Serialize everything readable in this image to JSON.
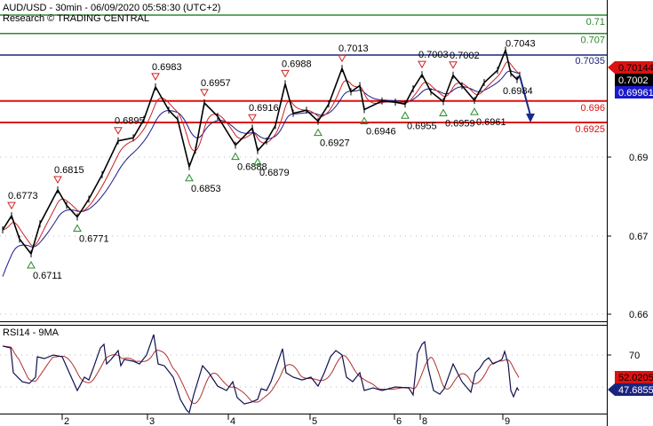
{
  "header": {
    "title": "AUD/USD - 30min - 06/09/2020 05:58:30 (UTC+2)",
    "credit": "Research © TRADING CENTRAL"
  },
  "colors": {
    "price": "#000000",
    "fast_ma": "#cc2222",
    "slow_ma": "#1a1a8c",
    "resistance_green": "#2a8a2a",
    "pivot_navy": "#1a237e",
    "support_red": "#dd1111",
    "arrow": "#1a2a8c",
    "rsi": "#101050",
    "rsi_ma": "#b03030"
  },
  "chart_data": [
    {
      "type": "line",
      "panel": "price",
      "x_unit": "30-min bar index",
      "y_ticks": [
        "0.69",
        "0.67",
        "0.66"
      ],
      "x_ticks": [
        {
          "label": "2",
          "bar": 35
        },
        {
          "label": "3",
          "bar": 83
        },
        {
          "label": "4",
          "bar": 128.5
        },
        {
          "label": "5",
          "bar": 174.5
        },
        {
          "label": "6",
          "bar": 222
        },
        {
          "label": "8",
          "bar": 236.5
        },
        {
          "label": "9",
          "bar": 283
        }
      ],
      "close": [
        [
          1.5,
          0.675
        ],
        [
          6.5,
          0.6773
        ],
        [
          11,
          0.6735
        ],
        [
          17.5,
          0.6711
        ],
        [
          22.5,
          0.676
        ],
        [
          32.5,
          0.6815
        ],
        [
          37.5,
          0.679
        ],
        [
          43.5,
          0.6771
        ],
        [
          50,
          0.68
        ],
        [
          57.5,
          0.684
        ],
        [
          66.5,
          0.6895
        ],
        [
          75,
          0.69
        ],
        [
          81,
          0.693
        ],
        [
          87.5,
          0.6983
        ],
        [
          95,
          0.6945
        ],
        [
          100,
          0.693
        ],
        [
          106.5,
          0.6853
        ],
        [
          110,
          0.688
        ],
        [
          115,
          0.6957
        ],
        [
          122.5,
          0.6935
        ],
        [
          132.5,
          0.6888
        ],
        [
          142,
          0.6916
        ],
        [
          145,
          0.6879
        ],
        [
          150,
          0.6895
        ],
        [
          155,
          0.692
        ],
        [
          160.5,
          0.6988
        ],
        [
          165,
          0.694
        ],
        [
          172.5,
          0.6945
        ],
        [
          179,
          0.6927
        ],
        [
          185,
          0.6955
        ],
        [
          192.5,
          0.7013
        ],
        [
          197.5,
          0.6975
        ],
        [
          202.5,
          0.6985
        ],
        [
          205,
          0.6946
        ],
        [
          215,
          0.696
        ],
        [
          222.5,
          0.6958
        ],
        [
          228,
          0.6955
        ],
        [
          232.5,
          0.698
        ],
        [
          237.5,
          0.7003
        ],
        [
          242.5,
          0.6975
        ],
        [
          249.5,
          0.6959
        ],
        [
          255,
          0.7002
        ],
        [
          260,
          0.6985
        ],
        [
          267,
          0.6961
        ],
        [
          272.5,
          0.699
        ],
        [
          280,
          0.701
        ],
        [
          284.5,
          0.7043
        ],
        [
          287.5,
          0.7005
        ],
        [
          291,
          0.6995
        ],
        [
          292.5,
          0.7002
        ]
      ],
      "series": [
        {
          "color": "#cc2222"
        },
        {
          "color": "#1a1a8c"
        }
      ],
      "annotations": [
        {
          "kind": "high",
          "bar": 6.5,
          "label": "0.6773",
          "price": 0.6773
        },
        {
          "kind": "low",
          "bar": 17.5,
          "label": "0.6711",
          "price": 0.6711
        },
        {
          "kind": "high",
          "bar": 32.5,
          "label": "0.6815",
          "price": 0.6815
        },
        {
          "kind": "low",
          "bar": 43.5,
          "label": "0.6771",
          "price": 0.6771
        },
        {
          "kind": "high",
          "bar": 66.5,
          "label": "0.6895",
          "price": 0.6895
        },
        {
          "kind": "high",
          "bar": 87.5,
          "label": "0.6983",
          "price": 0.6983
        },
        {
          "kind": "low",
          "bar": 106.5,
          "label": "0.6853",
          "price": 0.6853
        },
        {
          "kind": "high",
          "bar": 115,
          "label": "0.6957",
          "price": 0.6957
        },
        {
          "kind": "low",
          "bar": 132.5,
          "label": "0.6888",
          "price": 0.6888
        },
        {
          "kind": "high",
          "bar": 142,
          "label": "0.6916",
          "price": 0.6916
        },
        {
          "kind": "low",
          "bar": 145,
          "label": "0.6879",
          "price": 0.6879
        },
        {
          "kind": "high",
          "bar": 160.5,
          "label": "0.6988",
          "price": 0.6988
        },
        {
          "kind": "low",
          "bar": 179,
          "label": "0.6927",
          "price": 0.6927
        },
        {
          "kind": "high",
          "bar": 192.5,
          "label": "0.7013",
          "price": 0.7013
        },
        {
          "kind": "low",
          "bar": 205,
          "label": "0.6946",
          "price": 0.6946
        },
        {
          "kind": "low",
          "bar": 228,
          "label": "0.6955",
          "price": 0.6955
        },
        {
          "kind": "high",
          "bar": 237.5,
          "label": "0.7003",
          "price": 0.7003
        },
        {
          "kind": "low",
          "bar": 249.5,
          "label": "0.6959",
          "price": 0.6959
        },
        {
          "kind": "high",
          "bar": 255,
          "label": "0.7002",
          "price": 0.7002
        },
        {
          "kind": "low",
          "bar": 267,
          "label": "0.6961",
          "price": 0.6961
        },
        {
          "kind": "peak",
          "bar": 284.5,
          "label": "0.7043",
          "price": 0.7043
        },
        {
          "kind": "target",
          "bar": 294,
          "label": "0.6984",
          "price": 0.6984
        }
      ],
      "levels": [
        {
          "label": "0.71",
          "value": 0.71,
          "color": "#2a8a2a"
        },
        {
          "label": "0.707",
          "value": 0.707,
          "color": "#2a8a2a"
        },
        {
          "label": "0.7035",
          "value": 0.7035,
          "color": "#1a237e"
        },
        {
          "label": "0.696",
          "value": 0.696,
          "color": "#dd1111"
        },
        {
          "label": "0.6925",
          "value": 0.6925,
          "color": "#dd1111"
        }
      ],
      "forecast_arrow": {
        "from": [
          292.5,
          0.7001
        ],
        "to": [
          298.5,
          0.6925
        ]
      },
      "price_tags": [
        {
          "label": "0.70144",
          "value": 0.70144,
          "bg": "#dd1111",
          "fg": "#000000"
        },
        {
          "label": "0.7002",
          "value": 0.7002,
          "bg": "#000000",
          "fg": "#ffffff"
        },
        {
          "label": "0.69961",
          "value": 0.69961,
          "bg": "#1a1acc",
          "fg": "#ffffff"
        }
      ]
    },
    {
      "type": "line",
      "panel": "indicator",
      "title": "RSI14 - 9MA",
      "y_ticks": [
        "70"
      ],
      "rsi": [
        [
          1.5,
          75.6
        ],
        [
          6,
          74.4
        ],
        [
          7.5,
          58.9
        ],
        [
          12.5,
          53.3
        ],
        [
          16.5,
          52.2
        ],
        [
          20,
          56.1
        ],
        [
          21,
          68.9
        ],
        [
          25,
          67.8
        ],
        [
          30,
          70
        ],
        [
          35,
          68.9
        ],
        [
          39,
          58.9
        ],
        [
          43.5,
          47.8
        ],
        [
          47.5,
          56.1
        ],
        [
          50,
          54.4
        ],
        [
          52.5,
          61.7
        ],
        [
          56.5,
          74.4
        ],
        [
          58.5,
          76.7
        ],
        [
          60,
          64.4
        ],
        [
          62.5,
          67.2
        ],
        [
          66.5,
          72.8
        ],
        [
          68,
          63.3
        ],
        [
          70,
          67.2
        ],
        [
          75,
          66.1
        ],
        [
          78.5,
          64.4
        ],
        [
          82.5,
          70
        ],
        [
          86.5,
          82.8
        ],
        [
          89,
          64.4
        ],
        [
          92.5,
          63.3
        ],
        [
          97.5,
          56.1
        ],
        [
          101.5,
          42.2
        ],
        [
          105,
          35.5
        ],
        [
          106.5,
          33.9
        ],
        [
          109,
          45
        ],
        [
          114,
          63.3
        ],
        [
          117.5,
          58.9
        ],
        [
          122.5,
          50.5
        ],
        [
          127.5,
          47.8
        ],
        [
          131,
          53.3
        ],
        [
          133.5,
          43.3
        ],
        [
          137.5,
          39.4
        ],
        [
          141.5,
          40.5
        ],
        [
          145,
          42.2
        ],
        [
          147,
          48.9
        ],
        [
          150,
          47.8
        ],
        [
          152.5,
          53.3
        ],
        [
          156,
          64.4
        ],
        [
          159,
          73.9
        ],
        [
          161,
          58.9
        ],
        [
          165,
          56.1
        ],
        [
          170,
          54.4
        ],
        [
          175,
          56.1
        ],
        [
          179,
          50.5
        ],
        [
          182.5,
          58.9
        ],
        [
          186,
          68.9
        ],
        [
          189,
          72.8
        ],
        [
          192.5,
          70
        ],
        [
          195,
          56.1
        ],
        [
          198.5,
          53.3
        ],
        [
          202.5,
          58.9
        ],
        [
          205,
          47.8
        ],
        [
          210,
          49.4
        ],
        [
          215,
          47.8
        ],
        [
          222.5,
          50
        ],
        [
          230,
          49.4
        ],
        [
          232.5,
          45
        ],
        [
          235,
          71.1
        ],
        [
          237.5,
          76.7
        ],
        [
          239,
          78.3
        ],
        [
          241,
          61.7
        ],
        [
          244,
          47.8
        ],
        [
          247.5,
          45.5
        ],
        [
          250,
          48.9
        ],
        [
          255,
          64.4
        ],
        [
          260,
          53.3
        ],
        [
          265,
          46.7
        ],
        [
          267.5,
          58.9
        ],
        [
          270,
          61.7
        ],
        [
          272.5,
          66.1
        ],
        [
          275,
          68.3
        ],
        [
          277.5,
          64.4
        ],
        [
          282.5,
          67.2
        ],
        [
          284,
          72.2
        ],
        [
          286,
          64.4
        ],
        [
          287.5,
          47.8
        ],
        [
          289,
          43.9
        ],
        [
          291,
          49.4
        ],
        [
          292,
          47.7
        ]
      ],
      "rsi_ma_period": 9,
      "value_tags": [
        {
          "label": "52.0205",
          "value": 52.02,
          "bg": "#dd1111",
          "fg": "#000000"
        },
        {
          "label": "47.6855",
          "value": 47.69,
          "bg": "#1a237e",
          "fg": "#ffffff"
        }
      ]
    }
  ]
}
